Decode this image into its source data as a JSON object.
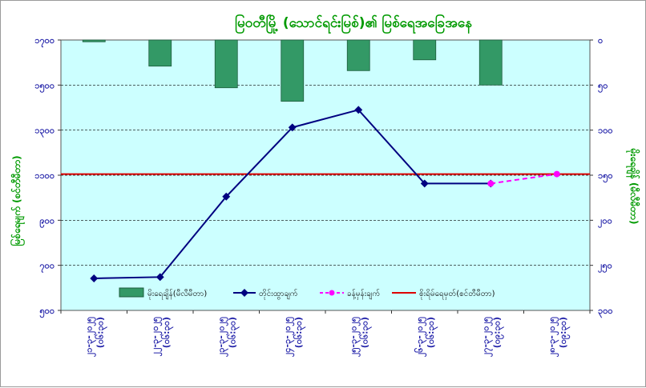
{
  "chart_data": {
    "type": "bar+line",
    "title": "မြဝတီမြို့ (သောင်ရင်းမြစ်)၏ မြစ်ရေအခြေအနေ",
    "ylabel_left": "မြစ်ရေမျက် (စင်တီမီတာ)",
    "ylabel_right": "မိုးရေချိန် (မီလီမီတာ)",
    "left_axis": {
      "min": 500,
      "max": 1700,
      "step": 200,
      "tick_labels": [
        "၅၀၀",
        "၇၀၀",
        "၉၀၀",
        "၁၁၀၀",
        "၁၃၀၀",
        "၁၅၀၀",
        "၁၇၀၀"
      ]
    },
    "right_axis": {
      "min": 0,
      "max": 300,
      "step": 50,
      "reversed": true,
      "tick_labels": [
        "၀",
        "၅၀",
        "၁၀၀",
        "၁၅၀",
        "၂၀၀",
        "၂၅၀",
        "၃၀၀"
      ]
    },
    "categories": [
      [
        "၂၁-၃-၂၀၂၅",
        "(၀၆:၃၀)"
      ],
      [
        "၂၂-၃-၂၀၂၅",
        "(၀၆:၃၀)"
      ],
      [
        "၂၃-၃-၂၀၂၅",
        "(၀၆:၃၀)"
      ],
      [
        "၂၄-၃-၂၀၂၅",
        "(၀၆:၃၀)"
      ],
      [
        "၂၅-၃-၂၀၂၅",
        "(၀၆:၃၀)"
      ],
      [
        "၂၆-၃-၂၀၂၅",
        "(၀၆:၃၀)"
      ],
      [
        "၂၇-၃-၂၀၂၅",
        "(၀၉:၃၀)"
      ],
      [
        "၂၈-၃-၂၀၂၅",
        "(၀၉:၃၀)"
      ]
    ],
    "series": [
      {
        "name": "မိုးရေချိန်(မီလီမီတာ)",
        "type": "bar",
        "axis": "right",
        "values": [
          2,
          29,
          53,
          68,
          34,
          22,
          50,
          null
        ]
      },
      {
        "name": "တိုင်းထွာချက်",
        "type": "line",
        "axis": "left",
        "values": [
          642,
          648,
          1005,
          1312,
          1390,
          1063,
          1063,
          null
        ]
      },
      {
        "name": "ခန့်မှန်းချက်",
        "type": "line-dashed",
        "axis": "left",
        "values": [
          null,
          null,
          null,
          null,
          null,
          null,
          1063,
          1105
        ]
      },
      {
        "name": "စိုးရိမ်ရေမှတ်(စင်တီမီတာ)",
        "type": "hline",
        "axis": "left",
        "value": 1105
      }
    ],
    "colors": {
      "plot_bg": "#ccffff",
      "bar": "#339966",
      "measured": "#000080",
      "forecast": "#ff00ff",
      "warning": "#dd0000",
      "axis_text": "#1f1fa8",
      "title": "#009a00"
    },
    "grid": true,
    "legend_position": "bottom-inside"
  }
}
